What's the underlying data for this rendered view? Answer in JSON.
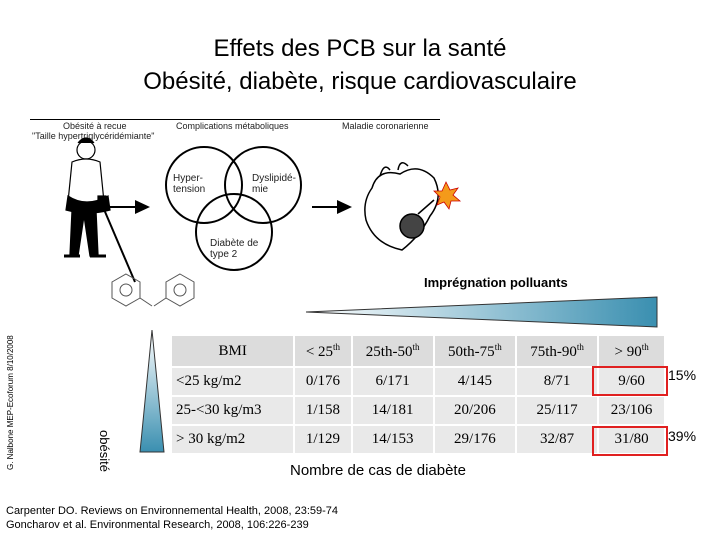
{
  "title": {
    "line1": "Effets des PCB sur la santé",
    "line2": "Obésité, diabète, risque cardiovasculaire"
  },
  "figure": {
    "col1": "Obésité à recue",
    "col1_sub": "\"Taille hypertriglycéridémiante\"",
    "col2": "Complications métaboliques",
    "col3": "Maladie coronarienne",
    "circle1": "Hyper-",
    "circle1b": "tension",
    "circle2": "Dyslipidé-",
    "circle2b": "mie",
    "circle3": "Diabète de",
    "circle3b": "type 2"
  },
  "side_credit": "G. Nalbone MEP-Ecoforum 8/10/2008",
  "impregnation_label": "Imprégnation polluants",
  "obesity_label": "obésité",
  "table": {
    "headers": [
      {
        "base": "BMI",
        "sup": ""
      },
      {
        "base": "< 25",
        "sup": "th"
      },
      {
        "base": "25th-50",
        "sup": "th"
      },
      {
        "base": "50th-75",
        "sup": "th"
      },
      {
        "base": "75th-90",
        "sup": "th"
      },
      {
        "base": "> 90",
        "sup": "th"
      }
    ],
    "rows": [
      [
        "<25 kg/m2",
        "0/176",
        "6/171",
        "4/145",
        "8/71",
        "9/60"
      ],
      [
        "25-<30 kg/m3",
        "1/158",
        "14/181",
        "20/206",
        "25/117",
        "23/106"
      ],
      [
        "> 30 kg/m2",
        "1/129",
        "14/153",
        "29/176",
        "32/87",
        "31/80"
      ]
    ]
  },
  "highlights": {
    "pct1": "15%",
    "pct2": "39%"
  },
  "table_caption": "Nombre de cas de diabète",
  "references": [
    "Carpenter DO. Reviews on Environnemental Health, 2008, 23:59-74",
    "Goncharov et al. Environmental Research, 2008, 106:226-239"
  ],
  "colors": {
    "wedge_start": "#ffffff",
    "wedge_end": "#3a8fb0",
    "highlight_red": "#e02020"
  }
}
